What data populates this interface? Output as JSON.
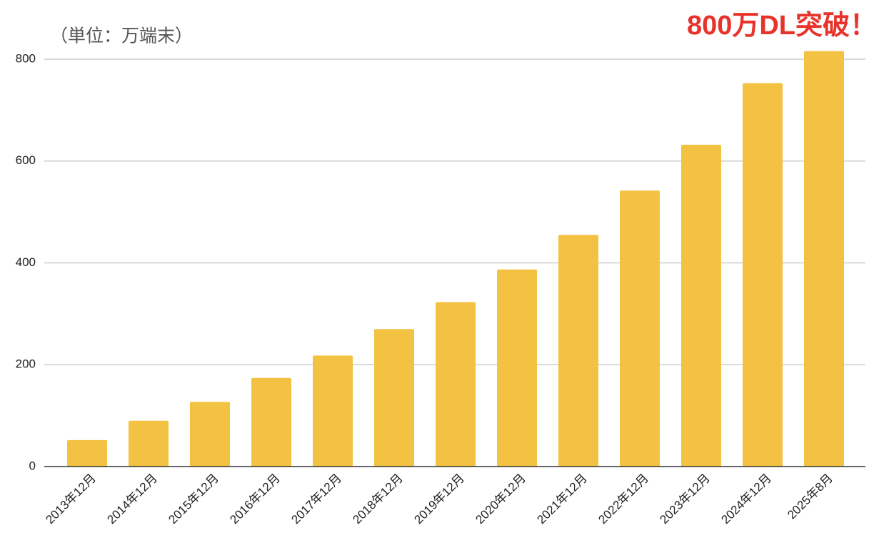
{
  "chart_data": {
    "type": "bar",
    "subtitle": "（単位：万端末）",
    "annotation": "800万DL突破！",
    "annotation_color": "#e8332a",
    "categories": [
      "2013年12月",
      "2014年12月",
      "2015年12月",
      "2016年12月",
      "2017年12月",
      "2018年12月",
      "2019年12月",
      "2020年12月",
      "2021年12月",
      "2022年12月",
      "2023年12月",
      "2024年12月",
      "2025年8月"
    ],
    "values": [
      52,
      90,
      127,
      174,
      218,
      270,
      323,
      387,
      455,
      542,
      632,
      753,
      816
    ],
    "color": "#f4c242",
    "ylim": [
      0,
      800
    ],
    "yticks": [
      0,
      200,
      400,
      600,
      800
    ],
    "grid": true
  }
}
